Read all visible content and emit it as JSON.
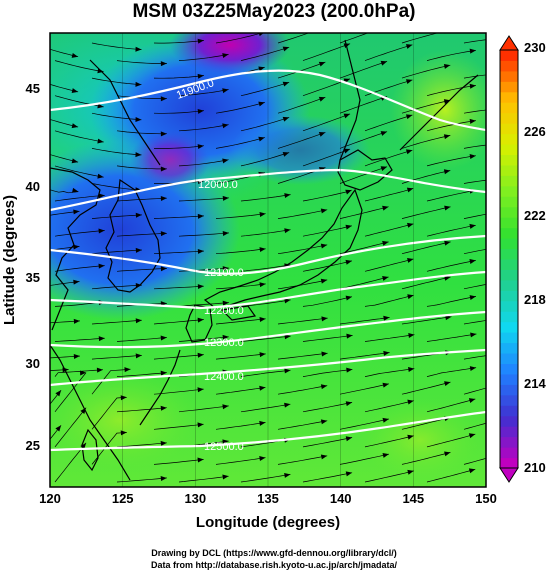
{
  "title": "MSM 03Z25May2023 (200.0hPa)",
  "x_axis": {
    "label": "Longitude (degrees)",
    "ticks": [
      "120",
      "125",
      "130",
      "135",
      "140",
      "145",
      "150"
    ]
  },
  "y_axis": {
    "label": "Latitude  (degrees)",
    "ticks": [
      "45",
      "40",
      "35",
      "30",
      "25"
    ]
  },
  "colorbar": {
    "labels": [
      "230",
      "226",
      "222",
      "218",
      "214",
      "210"
    ],
    "range": [
      210,
      230
    ],
    "colors": [
      "#c000c0",
      "#4030d0",
      "#2080ff",
      "#10d8f0",
      "#20d090",
      "#30e030",
      "#80ef20",
      "#d8f000",
      "#ffc000",
      "#ff3000"
    ]
  },
  "contours": {
    "labels": [
      "11900.0",
      "12000.0",
      "12100.0",
      "12200.0",
      "12300.0",
      "12400.0",
      "12500.0"
    ],
    "color": "#ffffff"
  },
  "credits": {
    "line1": "Drawing by DCL (https://www.gfd-dennou.org/library/dcl/)",
    "line2": "Data from http://database.rish.kyoto-u.ac.jp/arch/jmadata/"
  }
}
